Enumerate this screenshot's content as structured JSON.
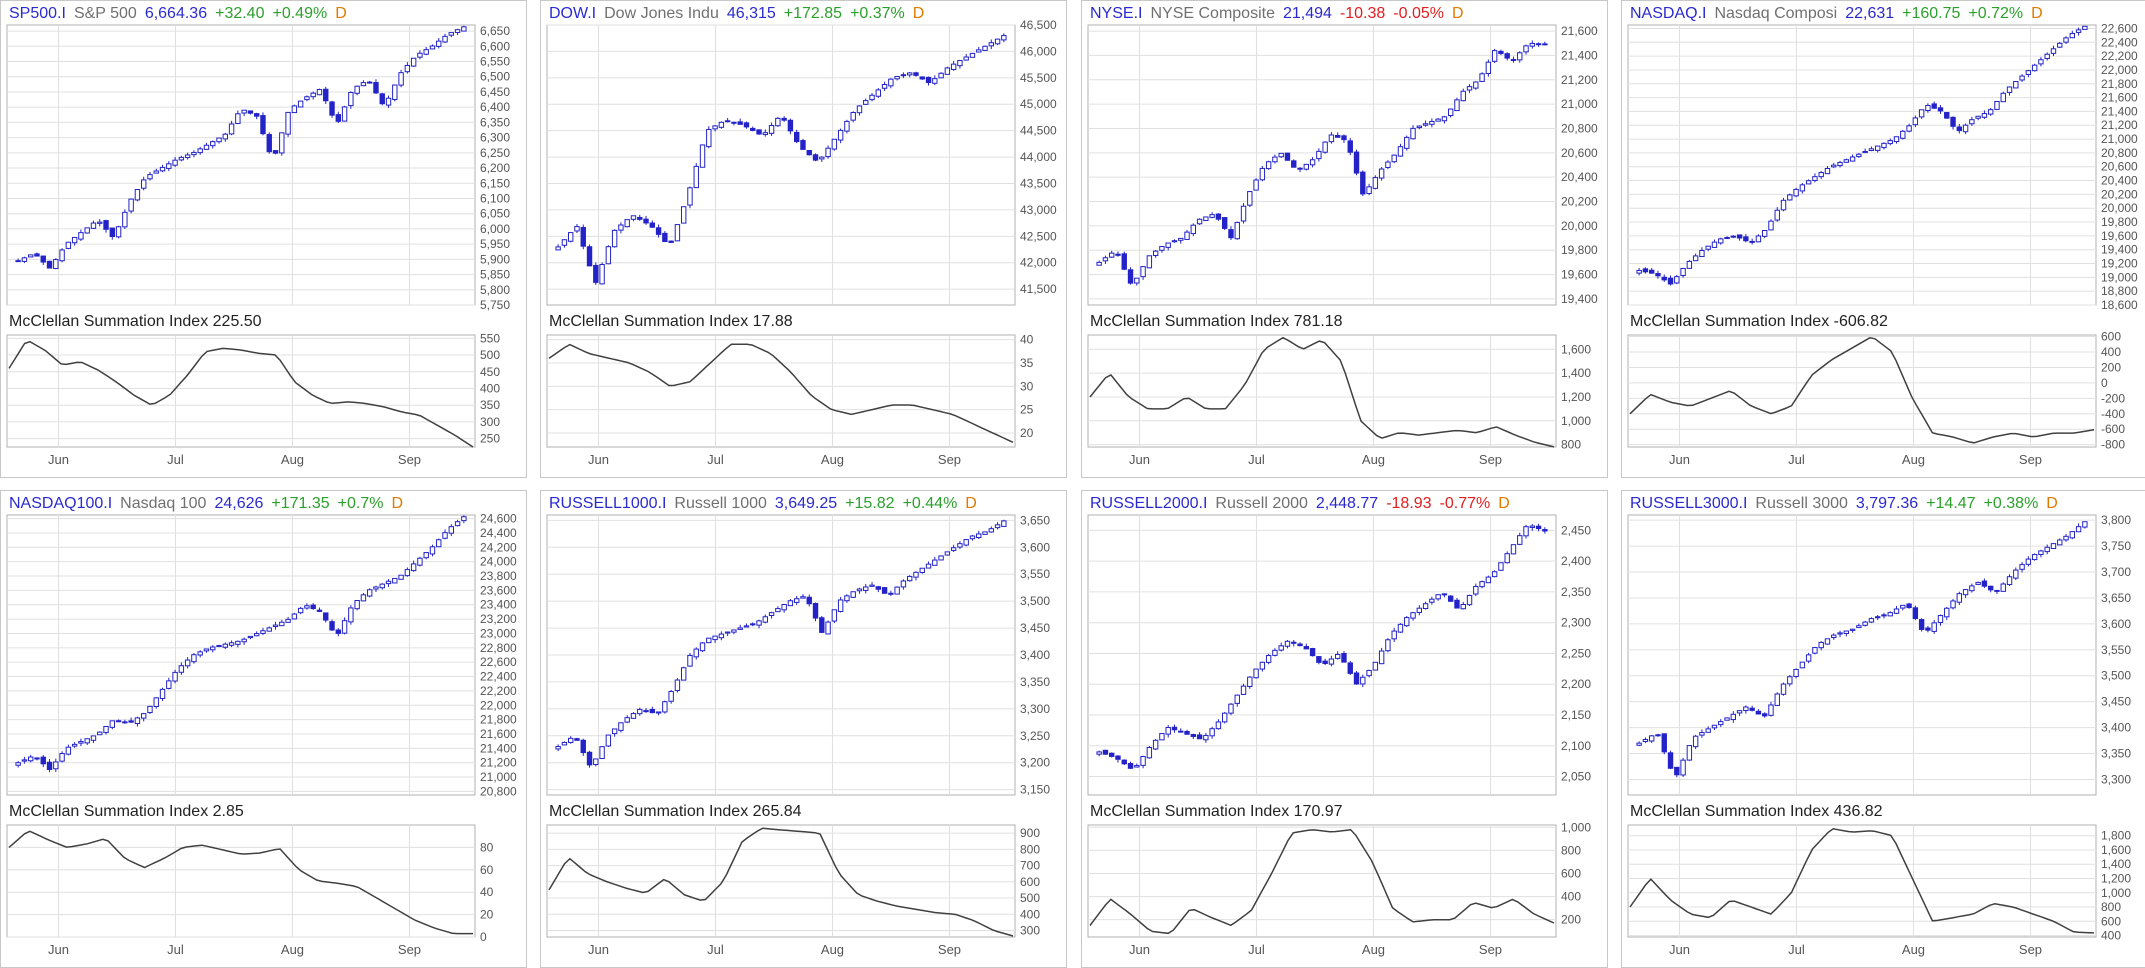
{
  "colors": {
    "candle": "#2323c8",
    "line": "#404040",
    "grid": "#e0e0e0",
    "frame": "#b0b0b0",
    "up": "#2ca02c",
    "down": "#e02020",
    "symbol": "#2a2ad0",
    "freq": "#e07b00"
  },
  "panels": [
    {
      "symbol": "SP500.I",
      "name": "S&P 500",
      "last": "6,664.36",
      "change": "+32.40",
      "pct": "+0.49%",
      "freq": "D",
      "dir": "up",
      "mcsi_label": "McClellan Summation Index 225.50",
      "chart_data": {
        "type": "candlestick",
        "price_ticks": [
          "6,650",
          "6,600",
          "6,550",
          "6,500",
          "6,450",
          "6,400",
          "6,350",
          "6,300",
          "6,250",
          "6,200",
          "6,150",
          "6,100",
          "6,050",
          "6,000",
          "5,950",
          "5,900",
          "5,850",
          "5,800",
          "5,750"
        ],
        "price_ylim": [
          5750,
          6670
        ],
        "price_path": [
          5895,
          5920,
          5870,
          5950,
          5990,
          6030,
          5970,
          6090,
          6170,
          6200,
          6230,
          6250,
          6280,
          6310,
          6395,
          6370,
          6220,
          6390,
          6430,
          6460,
          6340,
          6460,
          6490,
          6400,
          6510,
          6570,
          6600,
          6640,
          6664
        ],
        "mcsi_ticks": [
          "550",
          "500",
          "450",
          "400",
          "350",
          "300",
          "250"
        ],
        "mcsi_ylim": [
          225,
          560
        ],
        "mcsi_path": [
          460,
          545,
          515,
          470,
          480,
          455,
          420,
          380,
          350,
          380,
          440,
          510,
          520,
          515,
          505,
          500,
          420,
          380,
          355,
          360,
          355,
          345,
          330,
          320,
          290,
          260,
          225
        ],
        "x_ticks": [
          "Jun",
          "Jul",
          "Aug",
          "Sep"
        ]
      }
    },
    {
      "symbol": "DOW.I",
      "name": "Dow Jones Indu",
      "last": "46,315",
      "change": "+172.85",
      "pct": "+0.37%",
      "freq": "D",
      "dir": "up",
      "mcsi_label": "McClellan Summation Index 17.88",
      "chart_data": {
        "type": "candlestick",
        "price_ticks": [
          "46,500",
          "46,000",
          "45,500",
          "45,000",
          "44,500",
          "44,000",
          "43,500",
          "43,000",
          "42,500",
          "42,000",
          "41,500"
        ],
        "price_ylim": [
          41200,
          46500
        ],
        "price_path": [
          42300,
          42700,
          41600,
          42600,
          42900,
          42700,
          42300,
          43300,
          44500,
          44700,
          44600,
          44400,
          44800,
          44200,
          43900,
          44400,
          44900,
          45200,
          45500,
          45600,
          45400,
          45700,
          45900,
          46100,
          46300
        ],
        "mcsi_ticks": [
          "40",
          "35",
          "30",
          "25",
          "20"
        ],
        "mcsi_ylim": [
          17,
          41
        ],
        "mcsi_path": [
          36,
          39,
          37,
          36,
          35,
          33,
          30,
          31,
          35,
          39,
          39,
          37,
          33,
          28,
          25,
          24,
          25,
          26,
          26,
          25,
          24,
          22,
          20,
          18
        ],
        "x_ticks": [
          "Jun",
          "Jul",
          "Aug",
          "Sep"
        ]
      }
    },
    {
      "symbol": "NYSE.I",
      "name": "NYSE Composite",
      "last": "21,494",
      "change": "-10.38",
      "pct": "-0.05%",
      "freq": "D",
      "dir": "down",
      "mcsi_label": "McClellan Summation Index 781.18",
      "chart_data": {
        "type": "candlestick",
        "price_ticks": [
          "21,600",
          "21,400",
          "21,200",
          "21,000",
          "20,800",
          "20,600",
          "20,400",
          "20,200",
          "20,000",
          "19,800",
          "19,600",
          "19,400"
        ],
        "price_ylim": [
          19350,
          21650
        ],
        "price_path": [
          19700,
          19800,
          19500,
          19750,
          19850,
          19900,
          20050,
          20100,
          19900,
          20250,
          20500,
          20600,
          20450,
          20550,
          20750,
          20700,
          20250,
          20450,
          20600,
          20800,
          20850,
          20900,
          21100,
          21200,
          21450,
          21350,
          21500,
          21494
        ],
        "mcsi_ticks": [
          "1,600",
          "1,400",
          "1,200",
          "1,000",
          "800"
        ],
        "mcsi_ylim": [
          780,
          1720
        ],
        "mcsi_path": [
          1200,
          1400,
          1200,
          1100,
          1100,
          1200,
          1100,
          1100,
          1300,
          1600,
          1700,
          1600,
          1680,
          1500,
          1000,
          850,
          900,
          880,
          900,
          920,
          900,
          950,
          880,
          820,
          781
        ],
        "x_ticks": [
          "Jun",
          "Jul",
          "Aug",
          "Sep"
        ]
      }
    },
    {
      "symbol": "NASDAQ.I",
      "name": "Nasdaq Composi",
      "last": "22,631",
      "change": "+160.75",
      "pct": "+0.72%",
      "freq": "D",
      "dir": "up",
      "mcsi_label": "McClellan Summation Index -606.82",
      "chart_data": {
        "type": "candlestick",
        "price_ticks": [
          "22,600",
          "22,400",
          "22,200",
          "22,000",
          "21,800",
          "21,600",
          "21,400",
          "21,200",
          "21,000",
          "20,800",
          "20,600",
          "20,400",
          "20,200",
          "20,000",
          "19,800",
          "19,600",
          "19,400",
          "19,200",
          "19,000",
          "18,800",
          "18,600"
        ],
        "price_ylim": [
          18600,
          22650
        ],
        "price_path": [
          19100,
          19050,
          18900,
          19200,
          19400,
          19550,
          19600,
          19500,
          19700,
          20100,
          20300,
          20450,
          20600,
          20700,
          20800,
          20900,
          21000,
          21200,
          21500,
          21400,
          21100,
          21300,
          21400,
          21700,
          21900,
          22100,
          22300,
          22500,
          22631
        ],
        "mcsi_ticks": [
          "600",
          "400",
          "200",
          "0",
          "-200",
          "-400",
          "-600",
          "-800"
        ],
        "mcsi_ylim": [
          -830,
          620
        ],
        "mcsi_path": [
          -400,
          -150,
          -250,
          -300,
          -200,
          -100,
          -300,
          -400,
          -300,
          100,
          300,
          450,
          600,
          400,
          -200,
          -650,
          -700,
          -780,
          -700,
          -650,
          -700,
          -650,
          -650,
          -607
        ],
        "x_ticks": [
          "Jun",
          "Jul",
          "Aug",
          "Sep"
        ]
      }
    },
    {
      "symbol": "NASDAQ100.I",
      "name": "Nasdaq 100",
      "last": "24,626",
      "change": "+171.35",
      "pct": "+0.7%",
      "freq": "D",
      "dir": "up",
      "mcsi_label": "McClellan Summation Index 2.85",
      "chart_data": {
        "type": "candlestick",
        "price_ticks": [
          "24,600",
          "24,400",
          "24,200",
          "24,000",
          "23,800",
          "23,600",
          "23,400",
          "23,200",
          "23,000",
          "22,800",
          "22,600",
          "22,400",
          "22,200",
          "22,000",
          "21,800",
          "21,600",
          "21,400",
          "21,200",
          "21,000",
          "20,800"
        ],
        "price_ylim": [
          20750,
          24650
        ],
        "price_path": [
          21200,
          21300,
          21100,
          21400,
          21500,
          21600,
          21800,
          21750,
          21900,
          22200,
          22500,
          22700,
          22800,
          22850,
          22900,
          23000,
          23100,
          23200,
          23400,
          23300,
          22950,
          23400,
          23600,
          23700,
          23800,
          24000,
          24200,
          24450,
          24626
        ],
        "mcsi_ticks": [
          "80",
          "60",
          "40",
          "20",
          "0"
        ],
        "mcsi_ylim": [
          0,
          100
        ],
        "mcsi_path": [
          80,
          95,
          87,
          80,
          83,
          88,
          70,
          62,
          70,
          80,
          82,
          78,
          74,
          75,
          79,
          60,
          50,
          48,
          45,
          35,
          25,
          15,
          8,
          3,
          3
        ],
        "x_ticks": [
          "Jun",
          "Jul",
          "Aug",
          "Sep"
        ]
      }
    },
    {
      "symbol": "RUSSELL1000.I",
      "name": "Russell 1000",
      "last": "3,649.25",
      "change": "+15.82",
      "pct": "+0.44%",
      "freq": "D",
      "dir": "up",
      "mcsi_label": "McClellan Summation Index 265.84",
      "chart_data": {
        "type": "candlestick",
        "price_ticks": [
          "3,650",
          "3,600",
          "3,550",
          "3,500",
          "3,450",
          "3,400",
          "3,350",
          "3,300",
          "3,250",
          "3,200",
          "3,150"
        ],
        "price_ylim": [
          3140,
          3660
        ],
        "price_path": [
          3230,
          3250,
          3190,
          3250,
          3280,
          3300,
          3290,
          3340,
          3400,
          3430,
          3440,
          3450,
          3460,
          3480,
          3500,
          3510,
          3440,
          3500,
          3520,
          3530,
          3510,
          3540,
          3560,
          3580,
          3600,
          3620,
          3630,
          3649
        ],
        "mcsi_ticks": [
          "900",
          "800",
          "700",
          "600",
          "500",
          "400",
          "300"
        ],
        "mcsi_ylim": [
          260,
          950
        ],
        "mcsi_path": [
          550,
          750,
          650,
          600,
          560,
          530,
          620,
          520,
          480,
          600,
          850,
          930,
          920,
          910,
          900,
          650,
          520,
          480,
          450,
          430,
          410,
          400,
          360,
          300,
          266
        ],
        "x_ticks": [
          "Jun",
          "Jul",
          "Aug",
          "Sep"
        ]
      }
    },
    {
      "symbol": "RUSSELL2000.I",
      "name": "Russell 2000",
      "last": "2,448.77",
      "change": "-18.93",
      "pct": "-0.77%",
      "freq": "D",
      "dir": "down",
      "mcsi_label": "McClellan Summation Index 170.97",
      "chart_data": {
        "type": "candlestick",
        "price_ticks": [
          "2,450",
          "2,400",
          "2,350",
          "2,300",
          "2,250",
          "2,200",
          "2,150",
          "2,100",
          "2,050"
        ],
        "price_ylim": [
          2020,
          2475
        ],
        "price_path": [
          2090,
          2080,
          2060,
          2100,
          2130,
          2120,
          2110,
          2140,
          2180,
          2220,
          2250,
          2270,
          2260,
          2230,
          2250,
          2200,
          2230,
          2280,
          2310,
          2330,
          2350,
          2320,
          2360,
          2380,
          2420,
          2460,
          2449
        ],
        "mcsi_ticks": [
          "1,000",
          "800",
          "600",
          "400",
          "200"
        ],
        "mcsi_ylim": [
          50,
          1020
        ],
        "mcsi_path": [
          150,
          380,
          250,
          100,
          80,
          300,
          220,
          150,
          280,
          600,
          950,
          980,
          960,
          980,
          700,
          300,
          180,
          200,
          200,
          350,
          300,
          380,
          250,
          171
        ],
        "x_ticks": [
          "Jun",
          "Jul",
          "Aug",
          "Sep"
        ]
      }
    },
    {
      "symbol": "RUSSELL3000.I",
      "name": "Russell 3000",
      "last": "3,797.36",
      "change": "+14.47",
      "pct": "+0.38%",
      "freq": "D",
      "dir": "up",
      "mcsi_label": "McClellan Summation Index 436.82",
      "chart_data": {
        "type": "candlestick",
        "price_ticks": [
          "3,800",
          "3,750",
          "3,700",
          "3,650",
          "3,600",
          "3,550",
          "3,500",
          "3,450",
          "3,400",
          "3,350",
          "3,300"
        ],
        "price_ylim": [
          3270,
          3810
        ],
        "price_path": [
          3370,
          3390,
          3300,
          3380,
          3400,
          3420,
          3440,
          3420,
          3480,
          3520,
          3560,
          3580,
          3590,
          3610,
          3620,
          3640,
          3580,
          3620,
          3660,
          3680,
          3660,
          3700,
          3730,
          3750,
          3770,
          3797
        ],
        "mcsi_ticks": [
          "1,800",
          "1,600",
          "1,400",
          "1,200",
          "1,000",
          "800",
          "600",
          "400"
        ],
        "mcsi_ylim": [
          380,
          1950
        ],
        "mcsi_path": [
          800,
          1200,
          900,
          700,
          650,
          900,
          800,
          700,
          1000,
          1600,
          1900,
          1850,
          1870,
          1800,
          1200,
          600,
          650,
          700,
          850,
          800,
          700,
          600,
          450,
          437
        ],
        "x_ticks": [
          "Jun",
          "Jul",
          "Aug",
          "Sep"
        ]
      }
    }
  ]
}
